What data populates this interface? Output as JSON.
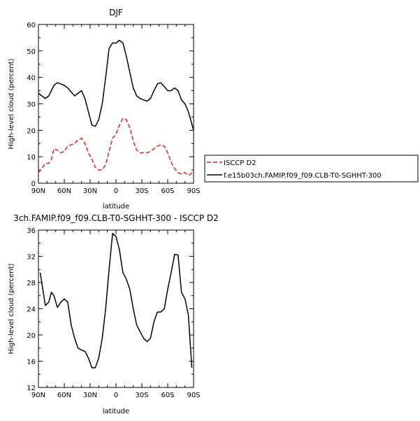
{
  "colors": {
    "black": "#000000",
    "red": "#e8201c"
  },
  "chart_data": [
    {
      "type": "line",
      "title": "DJF",
      "xlabel": "latitude",
      "ylabel": "High-level cloud (percent)",
      "xlim": [
        90,
        -90
      ],
      "ylim": [
        0,
        60
      ],
      "xticks": [
        "90N",
        "60N",
        "30N",
        "0",
        "30S",
        "60S",
        "90S"
      ],
      "xtick_values": [
        90,
        60,
        30,
        0,
        -30,
        -60,
        -90
      ],
      "yticks": [
        0,
        10,
        20,
        30,
        40,
        50,
        60
      ],
      "legend_position": "right",
      "series": [
        {
          "name": "ISCCP D2",
          "color": "#e8201c",
          "dashed": true,
          "x": [
            90,
            86,
            82,
            78,
            75,
            72,
            68,
            64,
            60,
            56,
            52,
            48,
            44,
            40,
            36,
            32,
            28,
            24,
            20,
            16,
            12,
            8,
            4,
            0,
            -4,
            -8,
            -12,
            -16,
            -20,
            -24,
            -28,
            -32,
            -36,
            -40,
            -44,
            -48,
            -52,
            -56,
            -60,
            -64,
            -68,
            -72,
            -76,
            -80,
            -84,
            -87,
            -90
          ],
          "y": [
            4,
            5.5,
            7.5,
            7.5,
            9,
            13,
            12.5,
            11.5,
            12,
            14,
            14.5,
            15,
            16.5,
            17,
            15,
            11.5,
            9,
            6,
            5,
            5,
            7,
            12,
            17,
            18.5,
            22,
            24.5,
            24,
            21,
            16,
            12.5,
            11.5,
            11.5,
            11.5,
            12,
            13,
            14,
            14.5,
            14,
            11.5,
            8,
            5.5,
            4,
            3.5,
            4,
            3,
            3.5,
            5
          ]
        },
        {
          "name": "f.e15b03ch.FAMIP.f09_f09.CLB-T0-SGHHT-300",
          "color": "#000000",
          "dashed": false,
          "x": [
            90,
            86,
            82,
            78,
            75,
            72,
            68,
            64,
            60,
            56,
            52,
            48,
            44,
            40,
            36,
            32,
            28,
            24,
            20,
            16,
            12,
            8,
            4,
            0,
            -4,
            -8,
            -12,
            -16,
            -20,
            -24,
            -28,
            -32,
            -36,
            -40,
            -44,
            -48,
            -52,
            -56,
            -60,
            -64,
            -68,
            -72,
            -76,
            -80,
            -84,
            -87,
            -90
          ],
          "y": [
            34,
            33,
            32,
            33,
            35,
            37,
            38,
            37.5,
            37,
            36,
            34.5,
            33,
            34,
            35,
            32,
            27,
            22,
            21.5,
            24,
            30,
            40,
            51,
            53,
            53,
            54,
            53,
            48,
            42,
            36,
            33,
            32,
            31.5,
            31,
            32,
            35,
            37.5,
            38,
            36.5,
            35,
            35,
            36,
            35,
            31.5,
            30,
            27,
            23.5,
            20
          ]
        }
      ]
    },
    {
      "type": "line",
      "title": "3ch.FAMIP.f09_f09.CLB-T0-SGHHT-300 - ISCCP D2",
      "xlabel": "latitude",
      "ylabel": "High-level cloud (percent)",
      "xlim": [
        90,
        -90
      ],
      "ylim": [
        12,
        36
      ],
      "xticks": [
        "90N",
        "60N",
        "30N",
        "0",
        "30S",
        "60S",
        "90S"
      ],
      "xtick_values": [
        90,
        60,
        30,
        0,
        -30,
        -60,
        -90
      ],
      "yticks": [
        12,
        16,
        20,
        24,
        28,
        32,
        36
      ],
      "series": [
        {
          "color": "#000000",
          "dashed": false,
          "x": [
            88,
            82,
            78,
            75,
            72,
            68,
            64,
            60,
            56,
            52,
            48,
            44,
            40,
            36,
            32,
            28,
            24,
            20,
            16,
            12,
            8,
            4,
            0,
            -4,
            -8,
            -12,
            -16,
            -20,
            -24,
            -28,
            -32,
            -36,
            -40,
            -44,
            -48,
            -52,
            -56,
            -60,
            -64,
            -68,
            -72,
            -76,
            -80,
            -84,
            -88
          ],
          "y": [
            29.5,
            24.5,
            25,
            26.5,
            26,
            24.2,
            25,
            25.5,
            25,
            21.5,
            19.5,
            18,
            17.7,
            17.5,
            16.5,
            15,
            15,
            16.5,
            19.5,
            24,
            30,
            35.5,
            35,
            33,
            29.5,
            28.5,
            27,
            24,
            21.5,
            20.5,
            19.5,
            19,
            19.5,
            22,
            23.5,
            23.5,
            24,
            27,
            29.5,
            32.3,
            32.2,
            26.5,
            25.5,
            23,
            15
          ]
        }
      ]
    }
  ]
}
